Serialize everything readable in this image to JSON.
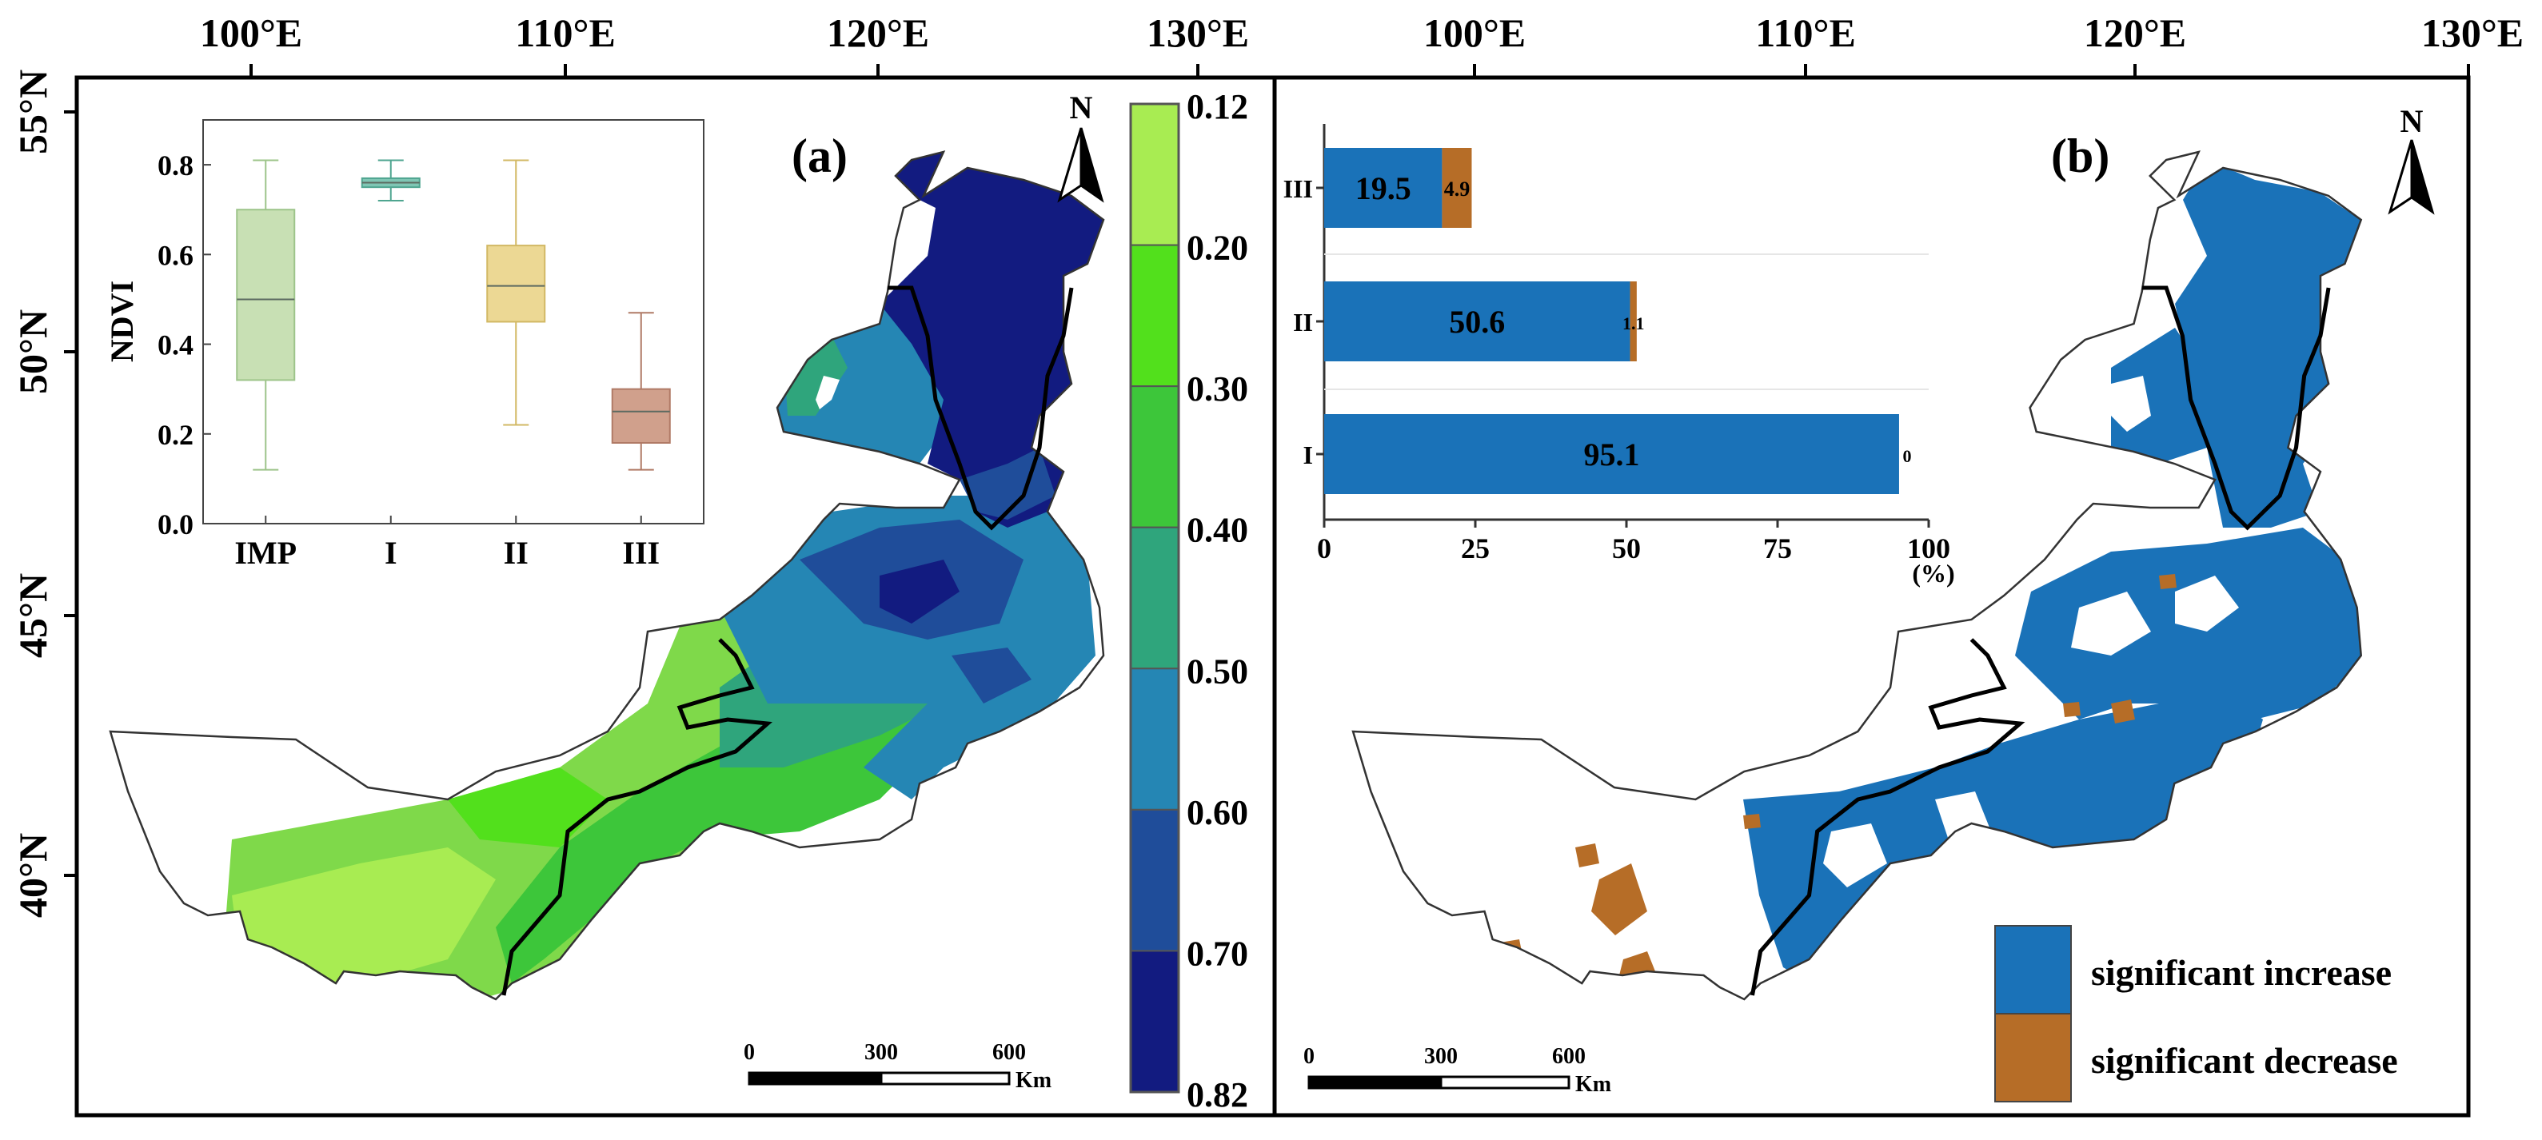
{
  "figure": {
    "lon_labels_a": [
      "100°E",
      "110°E",
      "120°E",
      "130°E"
    ],
    "lon_labels_b": [
      "100°E",
      "110°E",
      "120°E",
      "130°E"
    ],
    "lat_labels": [
      "55°N",
      "50°N",
      "45°N",
      "40°N"
    ],
    "north_label": "N",
    "scalebar": {
      "ticks": [
        "0",
        "300",
        "600"
      ],
      "unit": "Km"
    }
  },
  "panel_a": {
    "label": "(a)",
    "colorbar": {
      "labels": [
        "0.12",
        "0.20",
        "0.30",
        "0.40",
        "0.50",
        "0.60",
        "0.70",
        "0.82"
      ],
      "colors": [
        "#a8ec52",
        "#52e01c",
        "#3dc63a",
        "#2fa57c",
        "#2586b4",
        "#1f4d9a",
        "#121b80"
      ]
    },
    "boxplot": {
      "type": "box",
      "ylabel": "NDVI",
      "categories": [
        "IMP",
        "I",
        "II",
        "III"
      ],
      "ylim": [
        0.0,
        0.9
      ],
      "yticks": [
        "0.0",
        "0.2",
        "0.4",
        "0.6",
        "0.8"
      ],
      "boxes": [
        {
          "name": "IMP",
          "whisker_low": 0.12,
          "q1": 0.32,
          "median": 0.5,
          "q3": 0.7,
          "whisker_high": 0.81,
          "color": "#c8e0b4",
          "edge": "#9dc48a"
        },
        {
          "name": "I",
          "whisker_low": 0.72,
          "q1": 0.75,
          "median": 0.76,
          "q3": 0.77,
          "whisker_high": 0.81,
          "color": "#7fc6b4",
          "edge": "#4fa590"
        },
        {
          "name": "II",
          "whisker_low": 0.22,
          "q1": 0.45,
          "median": 0.53,
          "q3": 0.62,
          "whisker_high": 0.81,
          "color": "#ecd894",
          "edge": "#d2b864"
        },
        {
          "name": "III",
          "whisker_low": 0.12,
          "q1": 0.18,
          "median": 0.25,
          "q3": 0.3,
          "whisker_high": 0.47,
          "color": "#d0a08c",
          "edge": "#b07a66"
        }
      ]
    }
  },
  "panel_b": {
    "label": "(b)",
    "bar_chart": {
      "type": "bar",
      "orientation": "horizontal-stacked",
      "categories": [
        "III",
        "II",
        "I"
      ],
      "series": [
        {
          "name": "significant increase",
          "values": [
            19.5,
            50.6,
            95.1
          ],
          "labels": [
            "19.5",
            "50.6",
            "95.1"
          ],
          "color": "#1a72b8"
        },
        {
          "name": "significant decrease",
          "values": [
            4.9,
            1.1,
            0
          ],
          "labels": [
            "4.9",
            "1.1",
            "0"
          ],
          "color": "#b66d27"
        }
      ],
      "xlim": [
        0,
        100
      ],
      "xticks": [
        "0",
        "25",
        "50",
        "75",
        "100"
      ],
      "xunit": "(%)"
    },
    "legend": [
      {
        "label": "significant increase",
        "color": "#1a72b8"
      },
      {
        "label": "significant decrease",
        "color": "#b66d27"
      }
    ]
  }
}
